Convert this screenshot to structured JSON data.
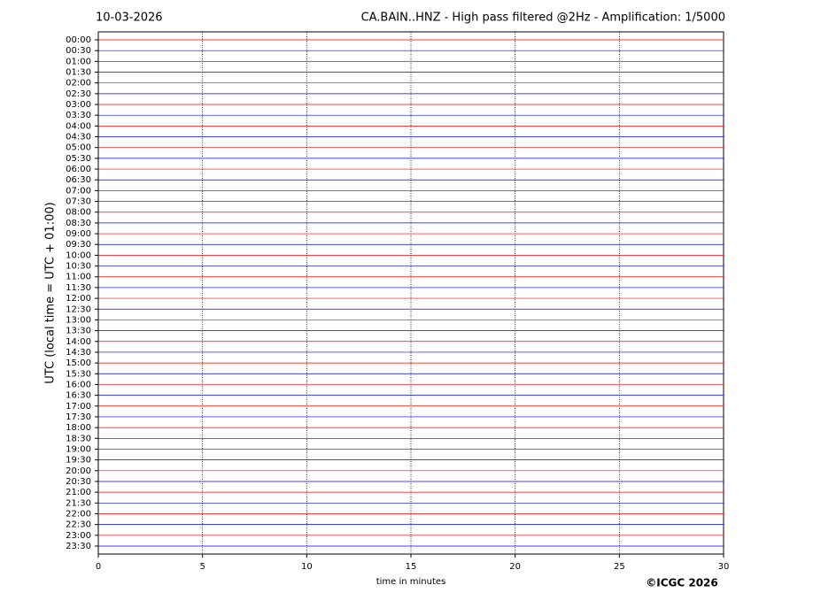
{
  "chart_data": {
    "type": "helicorder",
    "date": "10-03-2026",
    "title": "CA.BAIN..HNZ - High pass filtered @2Hz - Amplification: 1/5000",
    "y_label": "UTC (local time = UTC + 01:00)",
    "x_label": "time in minutes",
    "credit": "©ICGC 2026",
    "categories": [
      "00:00",
      "00:30",
      "01:00",
      "01:30",
      "02:00",
      "02:30",
      "03:00",
      "03:30",
      "04:00",
      "04:30",
      "05:00",
      "05:30",
      "06:00",
      "06:30",
      "07:00",
      "07:30",
      "08:00",
      "08:30",
      "09:00",
      "09:30",
      "10:00",
      "10:30",
      "11:00",
      "11:30",
      "12:00",
      "12:30",
      "13:00",
      "13:30",
      "14:00",
      "14:30",
      "15:00",
      "15:30",
      "16:00",
      "16:30",
      "17:00",
      "17:30",
      "18:00",
      "18:30",
      "19:00",
      "19:30",
      "20:00",
      "20:30",
      "21:00",
      "21:30",
      "22:00",
      "22:30",
      "23:00",
      "23:30"
    ],
    "trace_colors": [
      "#ff0000",
      "#0000ff"
    ],
    "xlim": [
      0,
      30
    ],
    "xticks": [
      0,
      5,
      10,
      15,
      20,
      25,
      30
    ],
    "grid": true
  }
}
